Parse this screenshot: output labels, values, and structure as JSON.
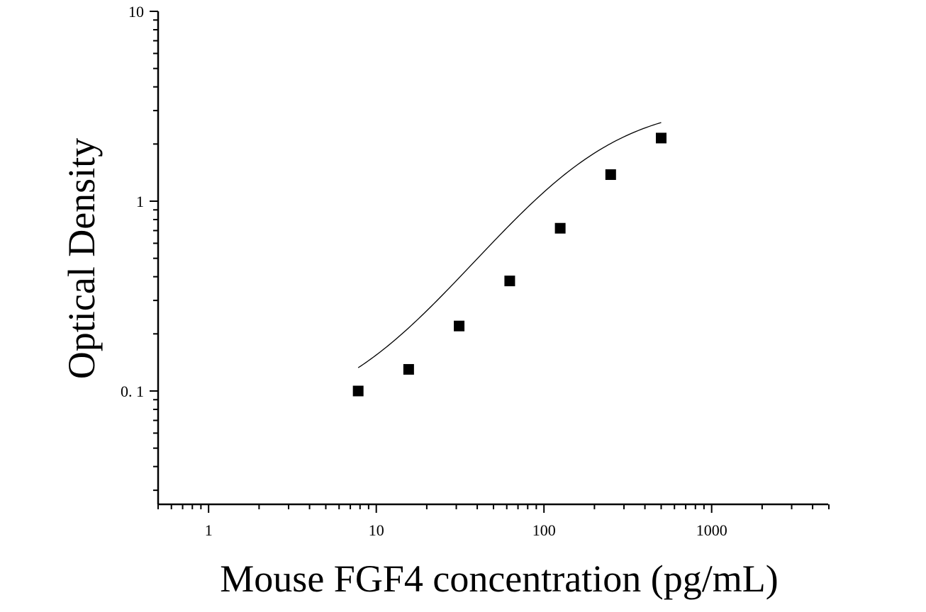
{
  "chart_data": {
    "type": "scatter",
    "title": "",
    "xlabel": "Mouse FGF4 concentration (pg/mL)",
    "ylabel": "Optical Density",
    "xscale": "log",
    "yscale": "log",
    "xlim": [
      0.5,
      5000
    ],
    "ylim": [
      0.025,
      10
    ],
    "x_ticks": [
      {
        "value": 1,
        "label": "1"
      },
      {
        "value": 10,
        "label": "10"
      },
      {
        "value": 100,
        "label": "100"
      },
      {
        "value": 1000,
        "label": "1000"
      }
    ],
    "y_ticks": [
      {
        "value": 0.1,
        "label": "0. 1"
      },
      {
        "value": 1,
        "label": "1"
      },
      {
        "value": 10,
        "label": "10"
      }
    ],
    "grid": false,
    "legend": "none",
    "series": [
      {
        "marker": "square",
        "color": "#000000",
        "x": [
          7.8,
          15.6,
          31.2,
          62.5,
          125,
          250,
          500
        ],
        "y": [
          0.1,
          0.13,
          0.22,
          0.38,
          0.72,
          1.38,
          2.15
        ]
      }
    ],
    "fit_curve": {
      "type": "4PL",
      "color": "#000000",
      "x_range": [
        7.8,
        500
      ],
      "params": {
        "A": 0.07,
        "D": 3.3,
        "C": 180,
        "B": 1.25
      }
    }
  }
}
